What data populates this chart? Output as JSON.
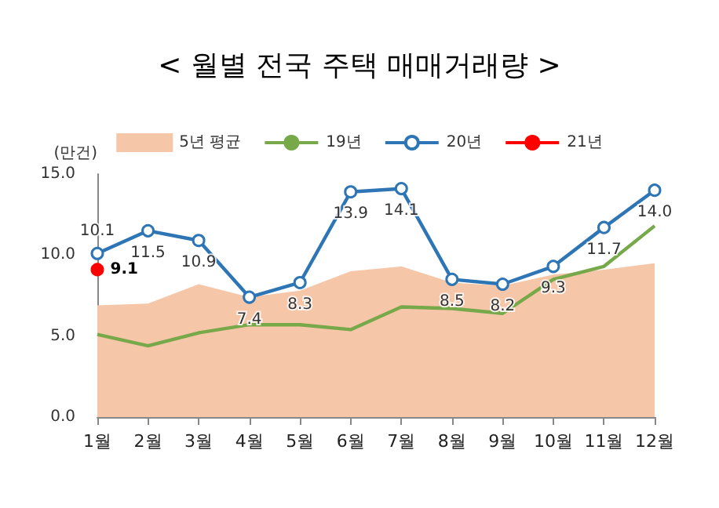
{
  "chart_data": {
    "type": "line",
    "title": "< 월별 전국 주택 매매거래량 >",
    "ylabel": "(만건)",
    "categories": [
      "1월",
      "2월",
      "3월",
      "4월",
      "5월",
      "6월",
      "7월",
      "8월",
      "9월",
      "10월",
      "11월",
      "12월"
    ],
    "series": [
      {
        "name": "5년 평균",
        "type": "area",
        "color": "#f6c6a8",
        "marker": "none",
        "values": [
          6.9,
          7.0,
          8.2,
          7.4,
          7.8,
          9.0,
          9.3,
          8.3,
          8.1,
          8.8,
          9.1,
          9.5
        ]
      },
      {
        "name": "19년",
        "color": "#77a94a",
        "marker": "none",
        "values": [
          5.1,
          4.4,
          5.2,
          5.7,
          5.7,
          5.4,
          6.8,
          6.7,
          6.4,
          8.5,
          9.3,
          11.8
        ]
      },
      {
        "name": "20년",
        "color": "#2e75b6",
        "marker": "circle",
        "values": [
          10.1,
          11.5,
          10.9,
          7.4,
          8.3,
          13.9,
          14.1,
          8.5,
          8.2,
          9.3,
          11.7,
          14.0
        ],
        "value_labels": [
          "10.1",
          "11.5",
          "10.9",
          "7.4",
          "8.3",
          "13.9",
          "14.1",
          "8.5",
          "8.2",
          "9.3",
          "11.7",
          "14.0"
        ]
      },
      {
        "name": "21년",
        "color": "#ff0000",
        "marker": "circle",
        "values": [
          9.1,
          null,
          null,
          null,
          null,
          null,
          null,
          null,
          null,
          null,
          null,
          null
        ],
        "value_labels": [
          "9.1",
          null,
          null,
          null,
          null,
          null,
          null,
          null,
          null,
          null,
          null,
          null
        ]
      }
    ],
    "ylim": [
      0,
      15
    ],
    "yticks": [
      {
        "value": 0,
        "label": "0.0"
      },
      {
        "value": 5,
        "label": "5.0"
      },
      {
        "value": 10,
        "label": "10.0"
      },
      {
        "value": 15,
        "label": "15.0"
      }
    ],
    "grid": false,
    "legend": "top"
  }
}
